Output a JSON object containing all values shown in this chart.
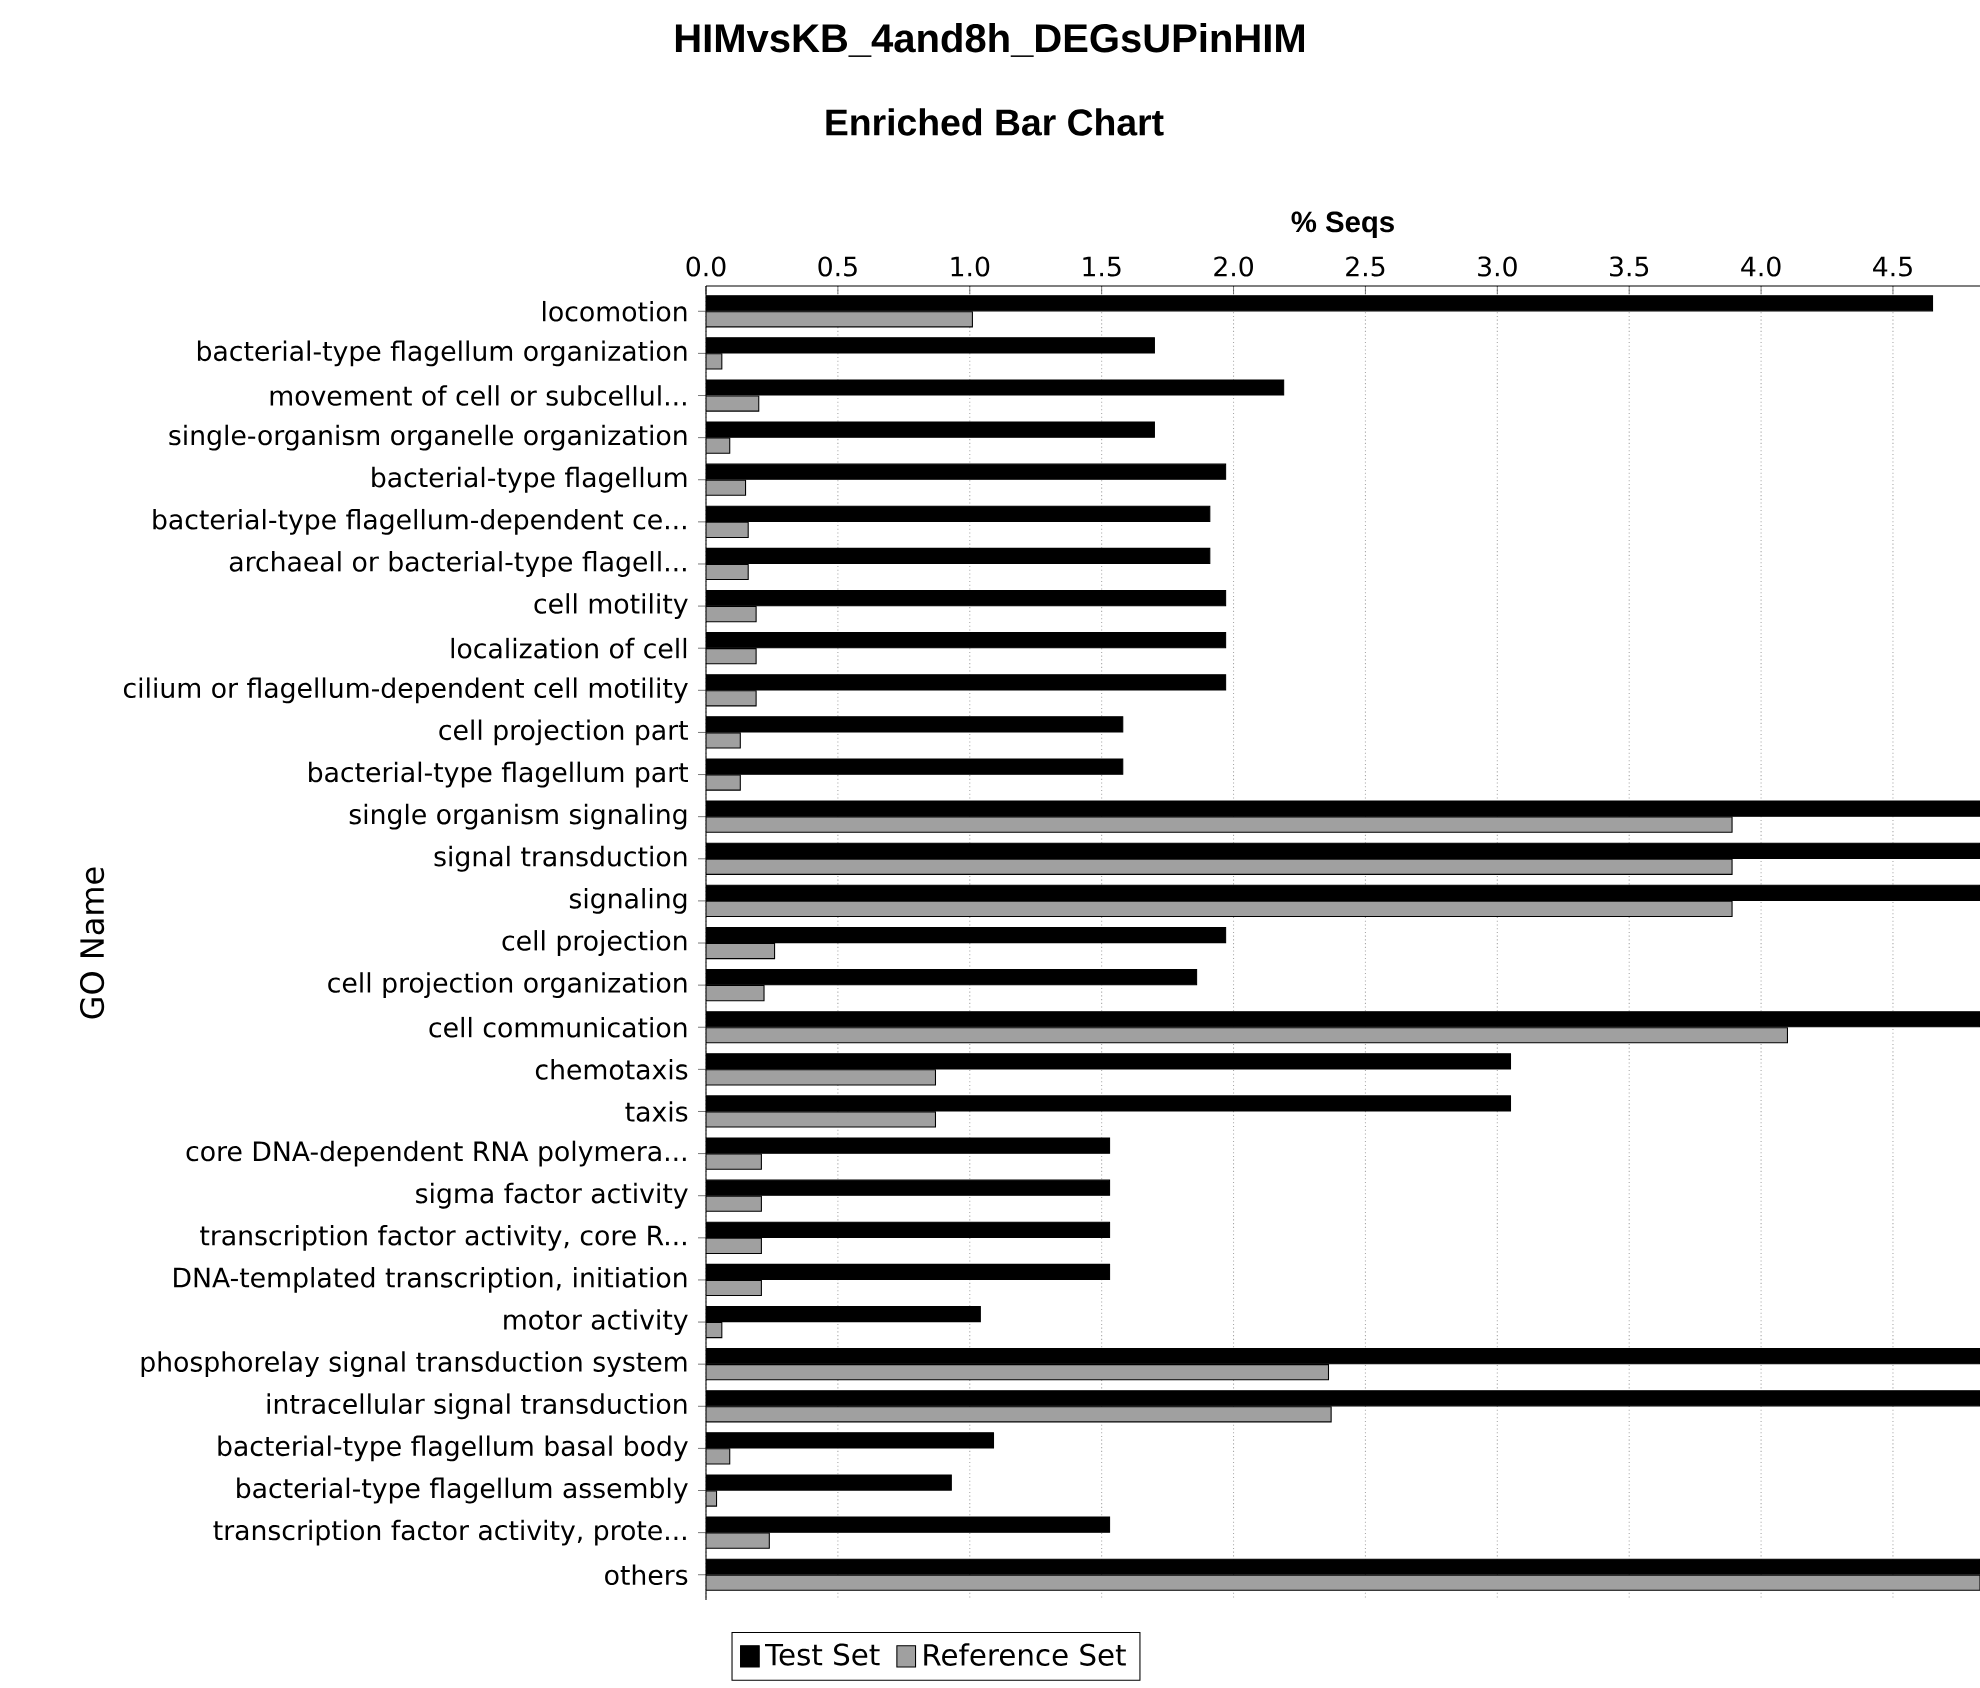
{
  "chart_data": {
    "type": "bar",
    "orientation": "horizontal",
    "title": "HIMvsKB_4and8h_DEGsUPinHIM",
    "subtitle": "Enriched Bar Chart",
    "xlabel": "% Seqs",
    "ylabel": "GO Name",
    "categories": [
      "locomotion",
      "bacterial-type flagellum organization",
      "movement of cell or subcellul...",
      "single-organism organelle organization",
      "bacterial-type flagellum",
      "bacterial-type flagellum-dependent ce...",
      "archaeal or bacterial-type flagell...",
      "cell motility",
      "localization of cell",
      "cilium or flagellum-dependent cell motility",
      "cell projection part",
      "bacterial-type flagellum part",
      "single organism signaling",
      "signal transduction",
      "signaling",
      "cell projection",
      "cell projection organization",
      "cell communication",
      "chemotaxis",
      "taxis",
      "core DNA-dependent RNA polymera...",
      "sigma factor activity",
      "transcription factor activity, core R...",
      "DNA-templated transcription, initiation",
      "motor activity",
      "phosphorelay signal transduction system",
      "intracellular signal transduction",
      "bacterial-type flagellum basal body",
      "bacterial-type flagellum assembly",
      "transcription factor activity, prote...",
      "others"
    ],
    "series": [
      {
        "name": "Test Set",
        "color": "#000000",
        "values": [
          4.65,
          1.7,
          2.19,
          1.7,
          1.97,
          1.91,
          1.91,
          1.97,
          1.97,
          1.97,
          1.58,
          1.58,
          4.83,
          4.83,
          4.83,
          1.97,
          1.86,
          4.83,
          3.05,
          3.05,
          1.53,
          1.53,
          1.53,
          1.53,
          1.04,
          4.83,
          4.83,
          1.09,
          0.93,
          1.53,
          4.83
        ]
      },
      {
        "name": "Reference Set",
        "color": "#a0a0a0",
        "values": [
          1.01,
          0.06,
          0.2,
          0.09,
          0.15,
          0.16,
          0.16,
          0.19,
          0.19,
          0.19,
          0.13,
          0.13,
          3.89,
          3.89,
          3.89,
          0.26,
          0.22,
          4.1,
          0.87,
          0.87,
          0.21,
          0.21,
          0.21,
          0.21,
          0.06,
          2.36,
          2.37,
          0.09,
          0.04,
          0.24,
          4.83
        ]
      }
    ],
    "xlim": [
      0,
      4.83
    ],
    "xticks": [
      {
        "value": 0,
        "label": "0.0"
      },
      0.5,
      {
        "value": 1,
        "label": "1.0"
      },
      1.5,
      {
        "value": 2,
        "label": "2.0"
      },
      2.5,
      {
        "value": 3,
        "label": "3.0"
      },
      3.5,
      {
        "value": 4,
        "label": "4.0"
      },
      4.5
    ],
    "grid": "x",
    "legend": "bottom"
  }
}
